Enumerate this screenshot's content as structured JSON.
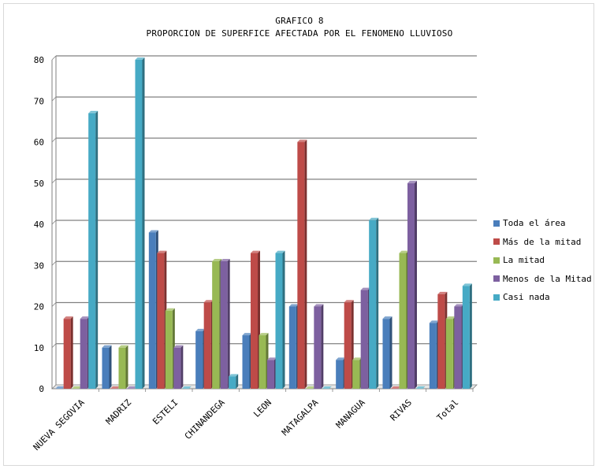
{
  "chart_data": {
    "type": "bar",
    "title": "GRAFICO 8",
    "subtitle": "PROPORCION DE SUPERFICE AFECTADA POR EL FENOMENO LLUVIOSO",
    "categories": [
      "NUEVA SEGOVIA",
      "MADRIZ",
      "ESTELI",
      "CHINANDEGA",
      "LEON",
      "MATAGALPA",
      "MANAGUA",
      "RIVAS",
      "Total"
    ],
    "series": [
      {
        "name": "Toda el área",
        "color": "#4a7ebb",
        "values": [
          0,
          10,
          38,
          14,
          13,
          20,
          7,
          17,
          16
        ]
      },
      {
        "name": "Más de la mitad",
        "color": "#be4b48",
        "values": [
          17,
          0,
          33,
          21,
          33,
          60,
          21,
          0,
          23
        ]
      },
      {
        "name": "La mitad",
        "color": "#98b954",
        "values": [
          0,
          10,
          19,
          31,
          13,
          0,
          7,
          33,
          17
        ]
      },
      {
        "name": "Menos de la Mitad",
        "color": "#7d60a0",
        "values": [
          17,
          0,
          10,
          31,
          7,
          20,
          24,
          50,
          20
        ]
      },
      {
        "name": "Casi nada",
        "color": "#46aac5",
        "values": [
          67,
          80,
          0,
          3,
          33,
          0,
          41,
          0,
          25
        ]
      }
    ],
    "yticks": [
      "0",
      "10",
      "20",
      "30",
      "40",
      "50",
      "60",
      "70",
      "80"
    ],
    "ylim": [
      0,
      80
    ],
    "grid": true,
    "legend_position": "right"
  }
}
